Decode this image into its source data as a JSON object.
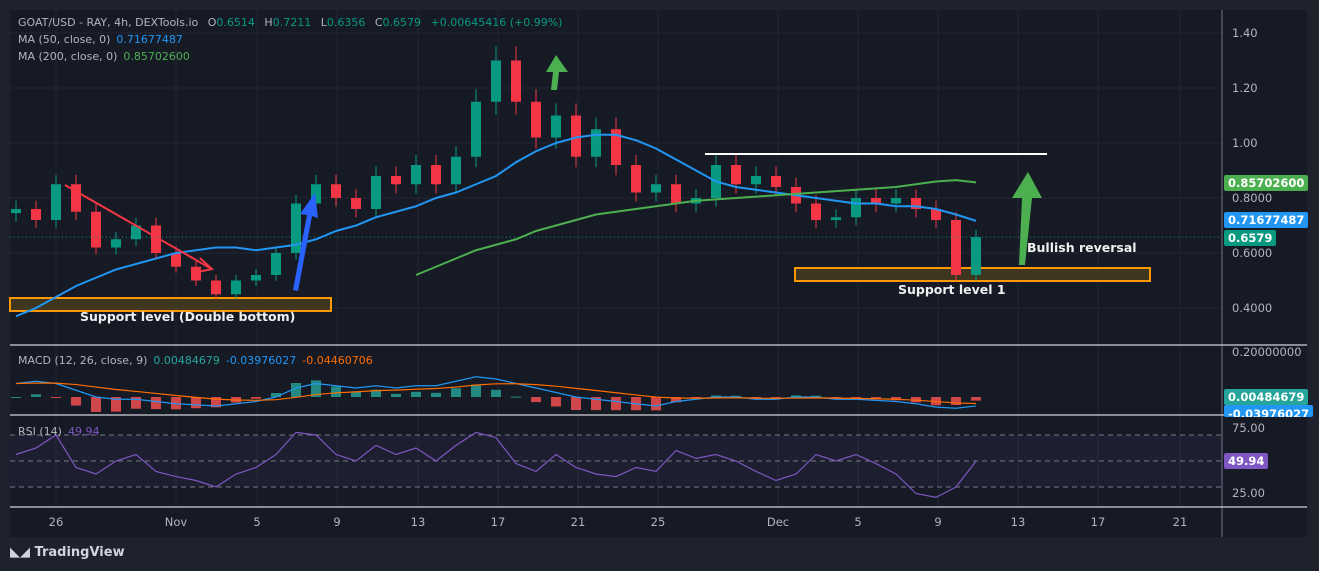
{
  "header": {
    "symbol": "GOAT/USD - RAY, 4h, DEXTools.io",
    "o_label": "O",
    "o": "0.6514",
    "h_label": "H",
    "h": "0.7211",
    "l_label": "L",
    "l": "0.6356",
    "c_label": "C",
    "c": "0.6579",
    "change": "+0.00645416 (+0.99%)"
  },
  "ma50": {
    "label": "MA (50, close, 0)",
    "value": "0.71677487",
    "color": "#2196f3"
  },
  "ma200": {
    "label": "MA (200, close, 0)",
    "value": "0.85702600",
    "color": "#4caf50"
  },
  "macd": {
    "label": "MACD (12, 26, close, 9)",
    "hist": "0.00484679",
    "macd": "-0.03976027",
    "signal": "-0.04460706",
    "axis_top": "0.20000000"
  },
  "rsi": {
    "label": "RSI (14)",
    "value": "49.94",
    "axis": [
      "75.00",
      "25.00"
    ]
  },
  "price_axis": [
    "1.40",
    "1.20",
    "1.00",
    "0.8000",
    "0.6000",
    "0.4000"
  ],
  "price_tags": {
    "ma200": "0.85702600",
    "ma50": "0.71677487",
    "last": "0.6579"
  },
  "time_axis": [
    "26",
    "Nov",
    "5",
    "9",
    "13",
    "17",
    "21",
    "25",
    "Dec",
    "5",
    "9",
    "13",
    "17",
    "21"
  ],
  "annotations": {
    "support1": "Support level (Double bottom)",
    "support2": "Support level 1",
    "bullish": "Bullish reversal"
  },
  "brand": "TradingView",
  "colors": {
    "up": "#089981",
    "down": "#f23645",
    "ma50": "#2196f3",
    "ma200": "#4caf50",
    "rsi": "#7e57c2",
    "support": "#ff9800",
    "signal": "#ff6d00"
  },
  "chart_data": {
    "type": "candlestick",
    "title": "GOAT/USD - RAY, 4h, DEXTools.io",
    "x_start": "Oct 24",
    "x_step": "1 day",
    "ylim": [
      0.35,
      1.45
    ],
    "close": [
      0.76,
      0.72,
      0.85,
      0.75,
      0.62,
      0.65,
      0.7,
      0.6,
      0.55,
      0.5,
      0.45,
      0.5,
      0.52,
      0.6,
      0.78,
      0.85,
      0.8,
      0.76,
      0.88,
      0.85,
      0.92,
      0.85,
      0.95,
      1.15,
      1.3,
      1.15,
      1.02,
      1.1,
      0.95,
      1.05,
      0.92,
      0.82,
      0.85,
      0.78,
      0.8,
      0.92,
      0.85,
      0.88,
      0.84,
      0.78,
      0.72,
      0.73,
      0.8,
      0.78,
      0.8,
      0.76,
      0.72,
      0.52,
      0.6579
    ],
    "ma50": [
      0.37,
      0.4,
      0.44,
      0.48,
      0.51,
      0.54,
      0.56,
      0.58,
      0.6,
      0.61,
      0.62,
      0.62,
      0.61,
      0.62,
      0.63,
      0.65,
      0.68,
      0.7,
      0.73,
      0.75,
      0.77,
      0.8,
      0.82,
      0.85,
      0.88,
      0.93,
      0.97,
      1.0,
      1.02,
      1.03,
      1.03,
      1.01,
      0.98,
      0.94,
      0.9,
      0.86,
      0.84,
      0.83,
      0.82,
      0.81,
      0.8,
      0.79,
      0.78,
      0.78,
      0.77,
      0.77,
      0.76,
      0.74,
      0.7168
    ],
    "ma200_start_index": 20,
    "ma200": [
      0.52,
      0.55,
      0.58,
      0.61,
      0.63,
      0.65,
      0.68,
      0.7,
      0.72,
      0.74,
      0.75,
      0.76,
      0.77,
      0.78,
      0.79,
      0.795,
      0.8,
      0.805,
      0.81,
      0.815,
      0.82,
      0.825,
      0.83,
      0.835,
      0.84,
      0.85,
      0.86,
      0.865,
      0.857
    ],
    "macd_line": [
      0.06,
      0.07,
      0.06,
      0.03,
      0.0,
      -0.01,
      -0.01,
      -0.02,
      -0.03,
      -0.035,
      -0.04,
      -0.03,
      -0.02,
      0.0,
      0.04,
      0.06,
      0.05,
      0.04,
      0.05,
      0.04,
      0.05,
      0.05,
      0.07,
      0.09,
      0.08,
      0.06,
      0.04,
      0.02,
      0.0,
      -0.01,
      -0.02,
      -0.03,
      -0.04,
      -0.02,
      -0.01,
      0.0,
      0.0,
      -0.01,
      -0.01,
      0.0,
      0.0,
      -0.01,
      -0.01,
      -0.015,
      -0.02,
      -0.03,
      -0.045,
      -0.05,
      -0.0398
    ],
    "rsi_values": [
      55,
      60,
      70,
      45,
      40,
      50,
      55,
      42,
      38,
      35,
      30,
      40,
      45,
      55,
      72,
      70,
      55,
      50,
      62,
      55,
      60,
      50,
      62,
      72,
      68,
      48,
      42,
      55,
      45,
      40,
      38,
      45,
      42,
      58,
      52,
      55,
      50,
      42,
      35,
      40,
      55,
      50,
      55,
      48,
      40,
      25,
      22,
      30,
      49.94
    ],
    "rsi_levels": [
      70,
      50,
      30
    ]
  }
}
